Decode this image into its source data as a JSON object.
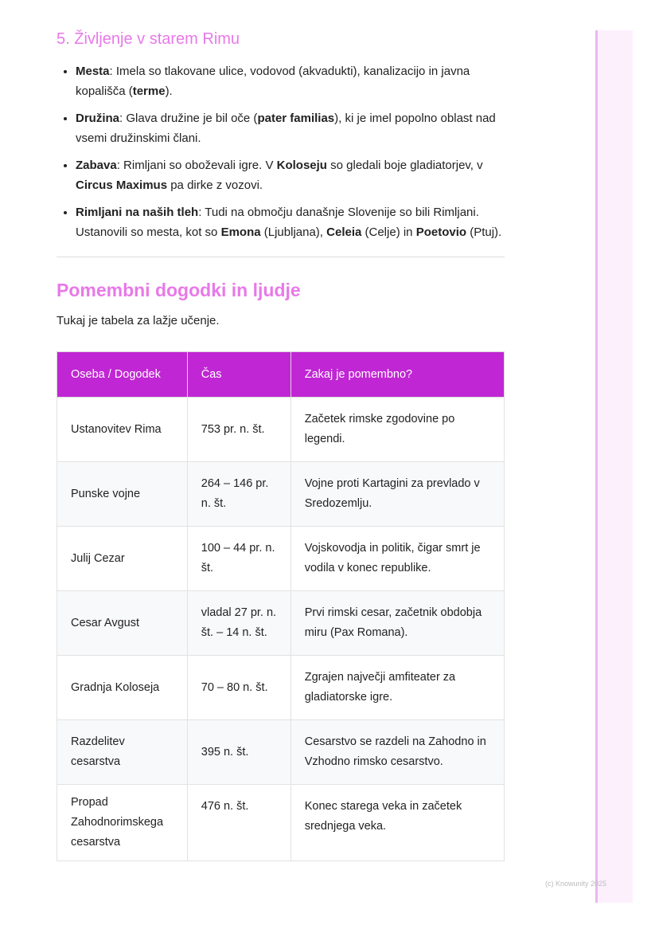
{
  "section_heading": "5. Življenje v starem Rimu",
  "bullets": [
    {
      "parts": [
        {
          "b": "Mesta"
        },
        {
          "t": ": Imela so tlakovane ulice, vodovod (akvadukti), kanalizacijo in javna kopališča ("
        },
        {
          "b": "terme"
        },
        {
          "t": ")."
        }
      ]
    },
    {
      "parts": [
        {
          "b": "Družina"
        },
        {
          "t": ": Glava družine je bil oče ("
        },
        {
          "b": "pater familias"
        },
        {
          "t": "), ki je imel popolno oblast nad vsemi družinskimi člani."
        }
      ]
    },
    {
      "parts": [
        {
          "b": "Zabava"
        },
        {
          "t": ": Rimljani so oboževali igre. V "
        },
        {
          "b": "Koloseju"
        },
        {
          "t": " so gledali boje gladiatorjev, v "
        },
        {
          "b": "Circus Maximus"
        },
        {
          "t": " pa dirke z vozovi."
        }
      ]
    },
    {
      "parts": [
        {
          "b": "Rimljani na naših tleh"
        },
        {
          "t": ": Tudi na območju današnje Slovenije so bili Rimljani. Ustanovili so mesta, kot so "
        },
        {
          "b": "Emona"
        },
        {
          "t": " (Ljubljana), "
        },
        {
          "b": "Celeia"
        },
        {
          "t": " (Celje) in "
        },
        {
          "b": "Poetovio"
        },
        {
          "t": " (Ptuj)."
        }
      ]
    }
  ],
  "heading": "Pomembni dogodki in ljudje",
  "intro": "Tukaj je tabela za lažje učenje.",
  "table": {
    "headers": [
      "Oseba / Dogodek",
      "Čas",
      "Zakaj je pomembno?"
    ],
    "rows": [
      [
        "Ustanovitev Rima",
        "753 pr. n. št.",
        "Začetek rimske zgodovine po legendi."
      ],
      [
        "Punske vojne",
        "264 – 146 pr. n. št.",
        "Vojne proti Kartagini za prevlado v Sredozemlju."
      ],
      [
        "Julij Cezar",
        "100 – 44 pr. n. št.",
        "Vojskovodja in politik, čigar smrt je vodila v konec republike."
      ],
      [
        "Cesar Avgust",
        "vladal 27 pr. n. št. – 14 n. št.",
        "Prvi rimski cesar, začetnik obdobja miru (Pax Romana)."
      ],
      [
        "Gradnja Koloseja",
        "70 – 80 n. št.",
        "Zgrajen največji amfiteater za gladiatorske igre."
      ],
      [
        "Razdelitev cesarstva",
        "395 n. št.",
        "Cesarstvo se razdeli na Zahodno in Vzhodno rimsko cesarstvo."
      ],
      [
        "Propad Zahodnorimskega cesarstva",
        "476 n. št.",
        "Konec starega veka in začetek srednjega veka."
      ]
    ]
  },
  "footer": "(c) Knowunity 2025",
  "colors": {
    "accent": "#c026d3",
    "heading": "#e879e8"
  }
}
